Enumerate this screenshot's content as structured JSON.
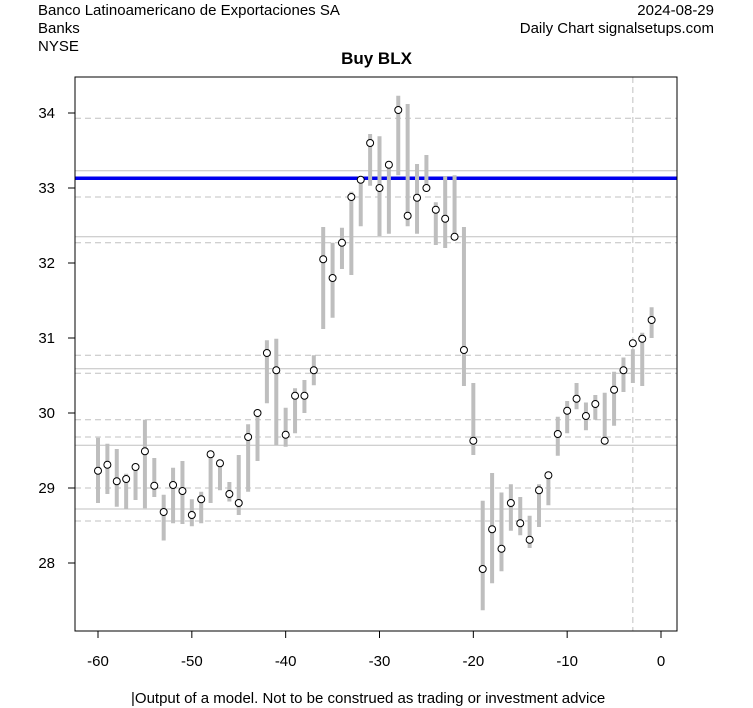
{
  "header": {
    "company": "Banco Latinoamericano de Exportaciones SA",
    "sector": "Banks",
    "exchange": "NYSE",
    "date": "2024-08-29",
    "source": "Daily Chart signalsetups.com"
  },
  "footer": {
    "disclaimer": "|Output of a model. Not to be construed as trading or investment advice"
  },
  "chart_data": {
    "type": "scatter",
    "title": "Buy BLX",
    "xlim": [
      -62.5,
      1.6
    ],
    "ylim": [
      27.1,
      34.5
    ],
    "xticks": [
      -60,
      -50,
      -40,
      -30,
      -20,
      -10,
      0
    ],
    "yticks": [
      28,
      29,
      30,
      31,
      32,
      33,
      34
    ],
    "x": [
      -60,
      -59,
      -58,
      -57,
      -56,
      -55,
      -54,
      -53,
      -52,
      -51,
      -50,
      -49,
      -48,
      -47,
      -46,
      -45,
      -44,
      -43,
      -42,
      -41,
      -40,
      -39,
      -38,
      -37,
      -36,
      -35,
      -34,
      -33,
      -32,
      -31,
      -30,
      -29,
      -28,
      -27,
      -26,
      -25,
      -24,
      -23,
      -22,
      -21,
      -20,
      -19,
      -18,
      -17,
      -16,
      -15,
      -14,
      -13,
      -12,
      -11,
      -10,
      -9,
      -8,
      -7,
      -6,
      -5,
      -4,
      -3,
      -2,
      -1
    ],
    "close": [
      29.23,
      29.31,
      29.09,
      29.12,
      29.28,
      29.49,
      29.03,
      28.68,
      29.04,
      28.96,
      28.64,
      28.85,
      29.45,
      29.33,
      28.92,
      28.8,
      29.68,
      30.0,
      30.8,
      30.57,
      29.71,
      30.23,
      30.23,
      30.57,
      32.05,
      31.8,
      32.27,
      32.88,
      33.11,
      33.6,
      33.0,
      33.31,
      34.04,
      32.63,
      32.87,
      33.0,
      32.71,
      32.59,
      32.35,
      30.84,
      29.63,
      27.92,
      28.45,
      28.19,
      28.8,
      28.53,
      28.31,
      28.97,
      29.17,
      29.72,
      30.03,
      30.19,
      29.96,
      30.12,
      29.63,
      30.31,
      30.57,
      30.93,
      30.99,
      31.24
    ],
    "high": [
      29.67,
      29.59,
      29.52,
      29.19,
      29.31,
      29.91,
      29.4,
      28.91,
      29.27,
      29.36,
      28.85,
      28.95,
      29.49,
      29.37,
      29.08,
      29.44,
      29.85,
      30.04,
      30.97,
      30.99,
      30.07,
      30.33,
      30.44,
      30.77,
      32.48,
      32.27,
      32.47,
      32.95,
      33.15,
      33.72,
      33.69,
      33.32,
      34.23,
      34.12,
      33.32,
      33.44,
      32.81,
      33.16,
      33.17,
      32.48,
      30.4,
      28.83,
      29.2,
      28.94,
      29.05,
      28.88,
      28.63,
      29.05,
      29.19,
      29.95,
      30.16,
      30.4,
      30.14,
      30.24,
      30.27,
      30.55,
      30.74,
      30.85,
      31.07,
      31.41
    ],
    "low": [
      28.8,
      28.92,
      28.75,
      28.72,
      28.84,
      28.73,
      28.88,
      28.3,
      28.53,
      28.52,
      28.49,
      28.53,
      28.8,
      28.97,
      28.82,
      28.64,
      28.95,
      29.36,
      30.13,
      29.57,
      29.55,
      29.73,
      30.0,
      30.37,
      31.12,
      31.27,
      31.92,
      31.84,
      32.49,
      33.03,
      32.36,
      32.39,
      33.17,
      32.49,
      32.39,
      32.97,
      32.24,
      32.2,
      32.35,
      30.36,
      29.44,
      27.37,
      27.73,
      27.89,
      28.43,
      28.37,
      28.2,
      28.48,
      28.77,
      29.43,
      29.73,
      30.05,
      29.77,
      29.91,
      29.63,
      29.83,
      30.28,
      30.4,
      30.36,
      31.0
    ],
    "signal_line": {
      "value": 33.13,
      "color": "#0000ee"
    },
    "solid_levels": [
      33.23,
      32.35,
      30.59,
      29.57,
      28.72
    ],
    "dashed_levels": [
      33.93,
      32.88,
      32.27,
      30.77,
      30.53,
      29.91,
      29.68,
      29.0,
      28.56
    ],
    "vertical_marker": -3,
    "bar_color": "#bebebe"
  }
}
